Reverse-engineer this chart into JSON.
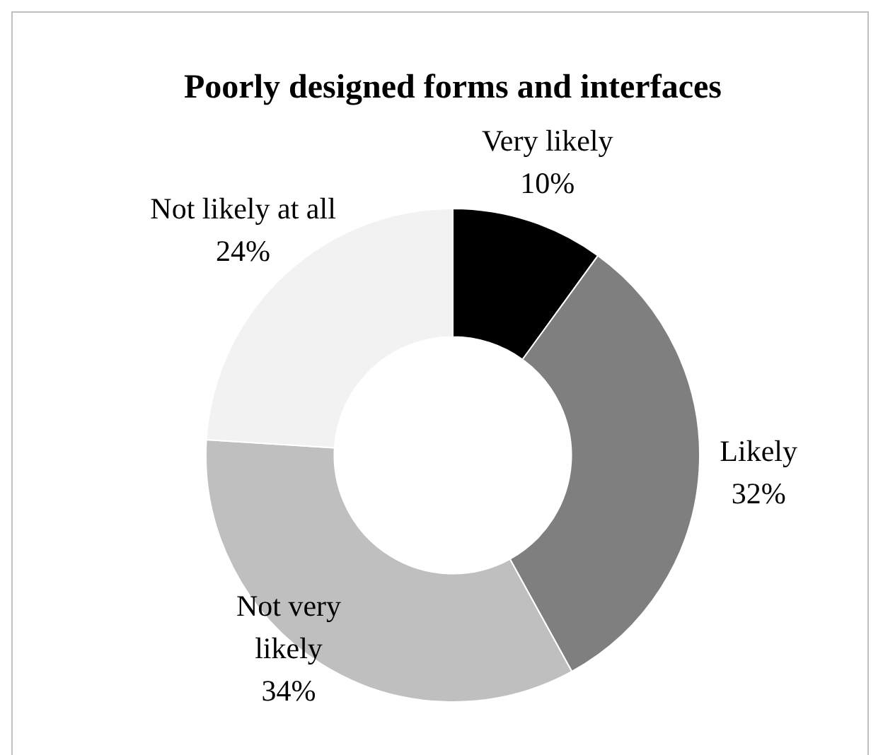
{
  "chart_data": {
    "type": "donut",
    "title": "Poorly designed forms and interfaces",
    "categories": [
      "Very likely",
      "Likely",
      "Not very likely",
      "Not likely at all"
    ],
    "values": [
      10,
      32,
      34,
      24
    ],
    "colors": [
      "#000000",
      "#7f7f7f",
      "#bfbfbf",
      "#f2f2f2"
    ],
    "value_labels": [
      "10%",
      "32%",
      "34%",
      "24%"
    ],
    "legend": false
  }
}
